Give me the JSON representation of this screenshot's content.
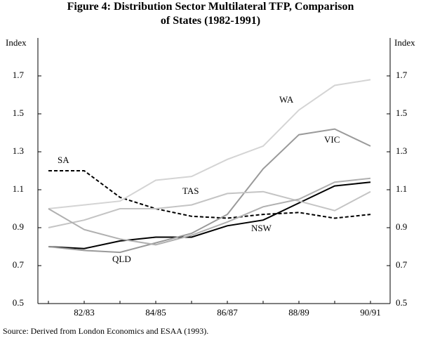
{
  "chart_data": {
    "type": "line",
    "title": "Figure 4: Distribution Sector Multilateral TFP, Comparison of States (1982-1991)",
    "y_label": "Index",
    "source": "Source:  Derived from London Economics and ESAA (1993).",
    "categories": [
      null,
      "82/83",
      null,
      "84/85",
      null,
      "86/87",
      null,
      "88/89",
      null,
      "90/91"
    ],
    "ylim": [
      0.5,
      1.9
    ],
    "yticks": [
      0.5,
      0.7,
      0.9,
      1.1,
      1.3,
      1.5,
      1.7
    ],
    "series": [
      {
        "name": "SA",
        "color": "#000000",
        "dashed": true,
        "values": [
          1.2,
          1.2,
          1.06,
          1.0,
          0.96,
          0.95,
          0.97,
          0.98,
          0.95,
          0.97
        ]
      },
      {
        "name": "NSW",
        "color": "#000000",
        "values": [
          0.8,
          0.79,
          0.83,
          0.85,
          0.85,
          0.91,
          0.94,
          1.03,
          1.12,
          1.14
        ]
      },
      {
        "name": "WA",
        "color": "#d4d4d4",
        "values": [
          1.0,
          1.02,
          1.04,
          1.15,
          1.17,
          1.26,
          1.33,
          1.52,
          1.65,
          1.68
        ]
      },
      {
        "name": "VIC",
        "color": "#9a9a9a",
        "values": [
          0.8,
          0.78,
          0.77,
          0.82,
          0.87,
          0.97,
          1.21,
          1.39,
          1.42,
          1.33
        ]
      },
      {
        "name": "TAS",
        "color": "#c4c4c4",
        "values": [
          0.9,
          0.94,
          1.0,
          1.0,
          1.02,
          1.08,
          1.09,
          1.04,
          0.99,
          1.09
        ]
      },
      {
        "name": "QLD",
        "color": "#b0b0b0",
        "values": [
          1.0,
          0.89,
          0.84,
          0.81,
          0.86,
          0.93,
          1.01,
          1.05,
          1.14,
          1.16
        ]
      }
    ]
  }
}
